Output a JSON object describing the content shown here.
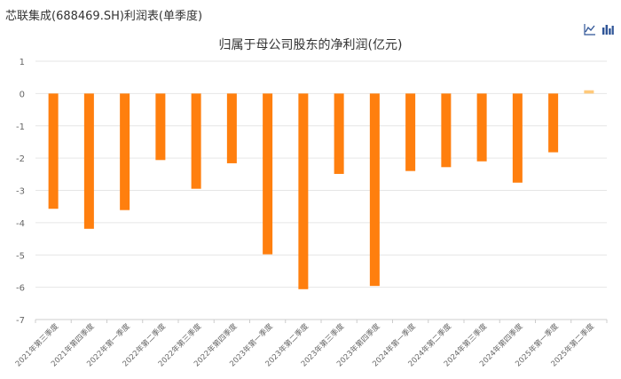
{
  "page": {
    "title": "芯联集成(688469.SH)利润表(单季度)"
  },
  "toolbar": {
    "line_icon": "line-chart-icon",
    "bar_icon": "bar-chart-icon"
  },
  "colors": {
    "bar": "#ff7f0e",
    "bar_latest": "#ffc97a",
    "grid": "#e6e6e6",
    "axis": "#cccccc",
    "tick_text": "#666666",
    "icon": "#2f5597"
  },
  "chart_data": {
    "type": "bar",
    "title": "归属于母公司股东的净利润(亿元)",
    "categories": [
      "2021年第三季度",
      "2021年第四季度",
      "2022年第一季度",
      "2022年第二季度",
      "2022年第三季度",
      "2022年第四季度",
      "2023年第一季度",
      "2023年第二季度",
      "2023年第三季度",
      "2023年第四季度",
      "2024年第一季度",
      "2024年第二季度",
      "2024年第三季度",
      "2024年第四季度",
      "2025年第一季度",
      "2025年第二季度"
    ],
    "values": [
      -3.57,
      -4.19,
      -3.61,
      -2.06,
      -2.95,
      -2.16,
      -4.98,
      -6.06,
      -2.49,
      -5.96,
      -2.4,
      -2.28,
      -2.1,
      -2.76,
      -1.82,
      0.1
    ],
    "ylim": [
      -7,
      1
    ],
    "yticks": [
      "1",
      "0",
      "-1",
      "-2",
      "-3",
      "-4",
      "-5",
      "-6",
      "-7"
    ],
    "grid": true,
    "legend": "none"
  }
}
